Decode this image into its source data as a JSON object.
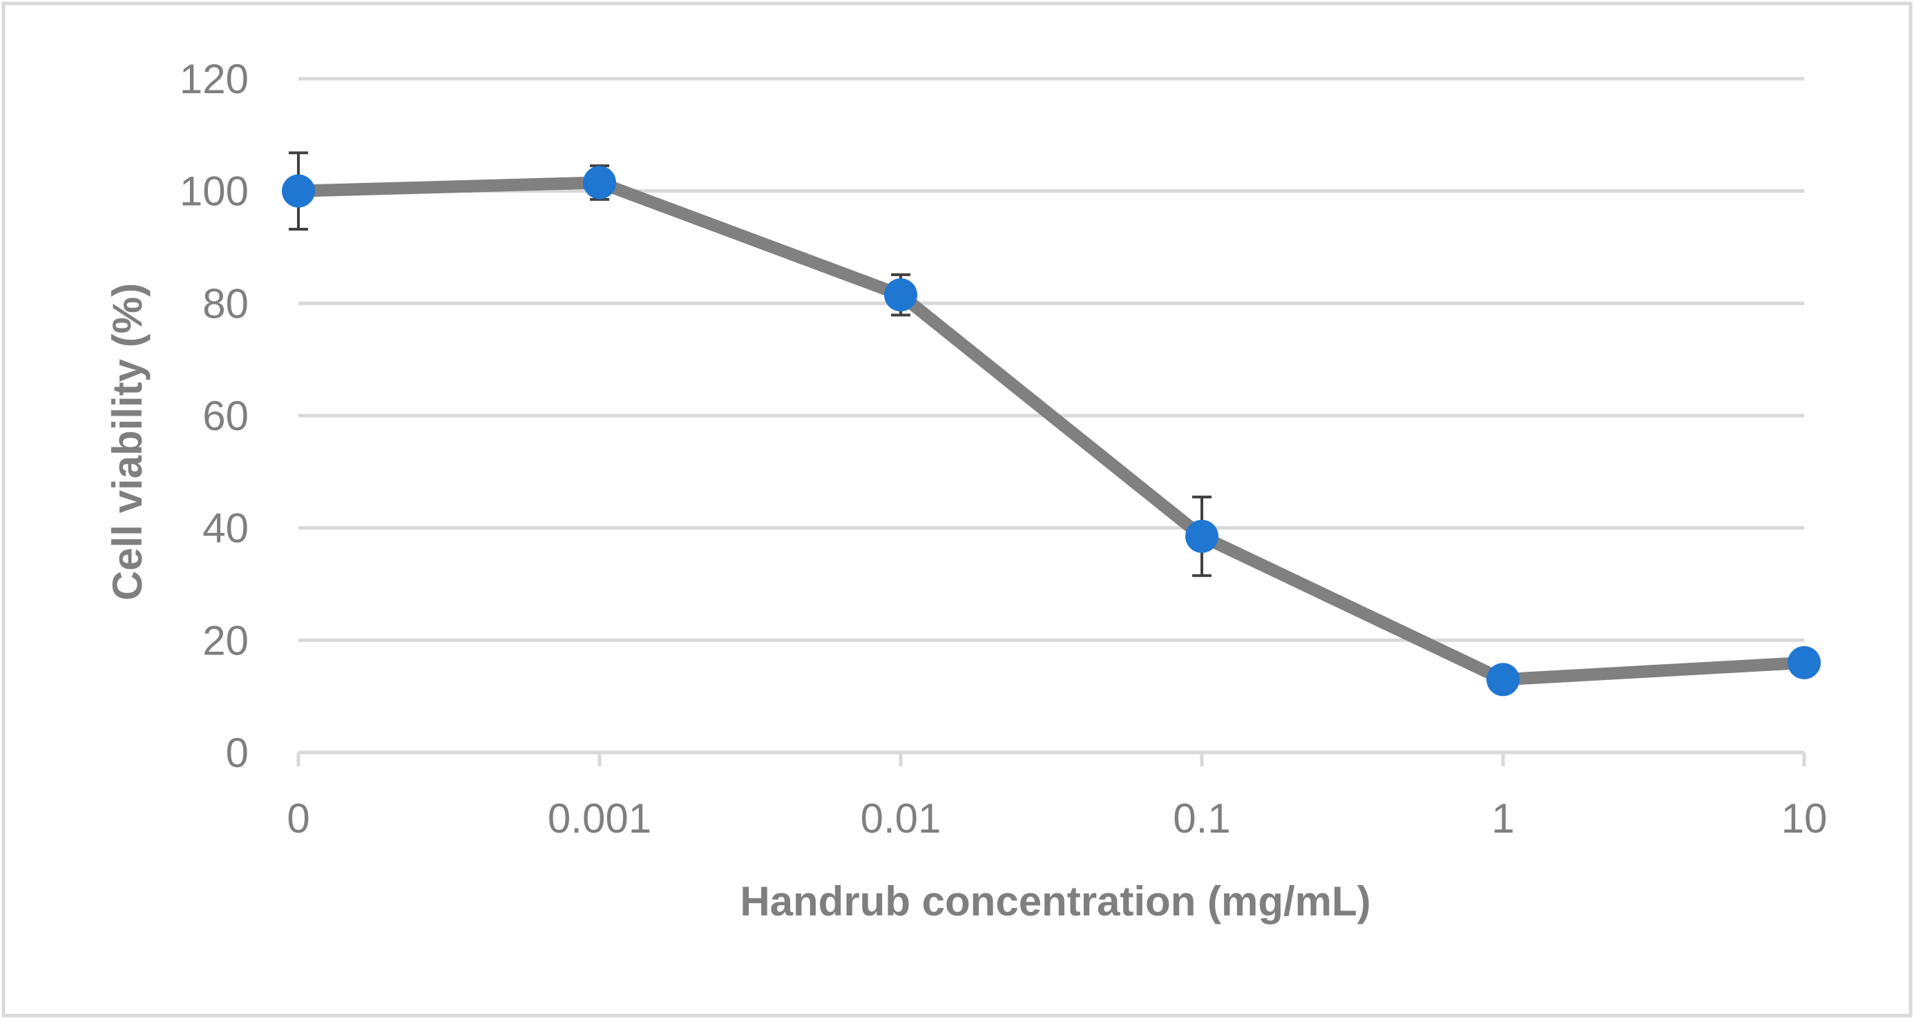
{
  "colors": {
    "grid": "#d9d9d9",
    "axis": "#d9d9d9",
    "line": "#808080",
    "marker": "#1f77d2",
    "errorbar": "#404040",
    "text": "#7f7f7f",
    "border": "#d9d9d9"
  },
  "chart_data": {
    "type": "line",
    "title": "",
    "xlabel": "Handrub concentration (mg/mL)",
    "ylabel": "Cell viability (%)",
    "categories": [
      "0",
      "0.001",
      "0.01",
      "0.1",
      "1",
      "10"
    ],
    "x_scale": "categorical",
    "ylim": [
      0,
      120
    ],
    "yticks": [
      "0",
      "20",
      "40",
      "60",
      "80",
      "100",
      "120"
    ],
    "grid": true,
    "legend": "none",
    "series": [
      {
        "name": "Cell viability",
        "values": [
          100,
          101.5,
          81.5,
          38.5,
          13,
          16
        ],
        "error": [
          6.8,
          3.0,
          3.6,
          7.0,
          0,
          0
        ]
      }
    ]
  }
}
